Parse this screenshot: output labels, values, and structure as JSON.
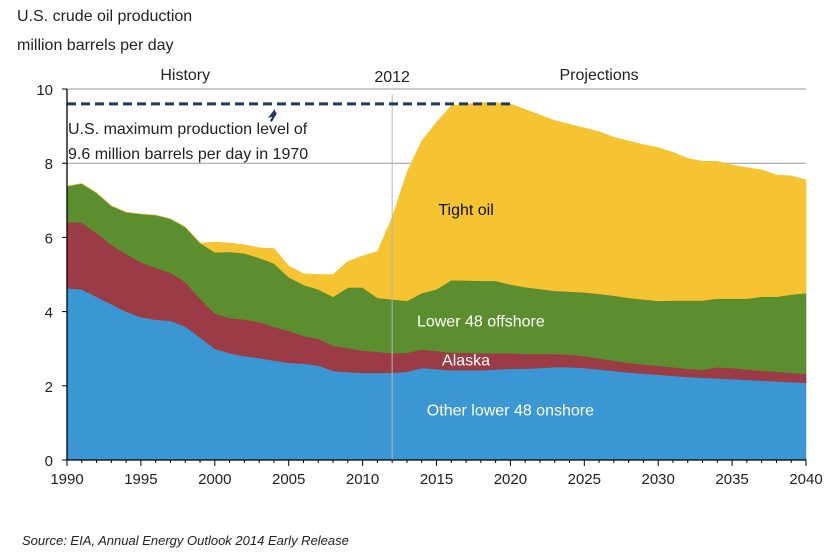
{
  "chart_data": {
    "type": "area",
    "stacked": true,
    "title_lines": [
      "U.S. crude oil production",
      "million barrels per day"
    ],
    "xlim": [
      1990,
      2040
    ],
    "ylim": [
      0,
      10
    ],
    "x_ticks": [
      1990,
      1995,
      2000,
      2005,
      2010,
      2015,
      2020,
      2025,
      2030,
      2035,
      2040
    ],
    "y_ticks": [
      0,
      2,
      4,
      6,
      8,
      10
    ],
    "grid": "horizontal lines at 8 and 10",
    "section_labels": {
      "history": "History",
      "divider": "2012",
      "projections": "Projections"
    },
    "divider_year": 2012,
    "annotation": {
      "line1": "U.S. maximum production level of",
      "line2": "9.6 million barrels per day in 1970",
      "level": 9.6,
      "x_range": [
        1990,
        2020
      ],
      "arrow_x": 2004
    },
    "source": "Source:  EIA, Annual Energy Outlook 2014 Early Release",
    "x": [
      1990,
      1991,
      1992,
      1993,
      1994,
      1995,
      1996,
      1997,
      1998,
      1999,
      2000,
      2001,
      2002,
      2003,
      2004,
      2005,
      2006,
      2007,
      2008,
      2009,
      2010,
      2011,
      2012,
      2013,
      2014,
      2015,
      2016,
      2017,
      2018,
      2019,
      2020,
      2021,
      2022,
      2023,
      2024,
      2025,
      2026,
      2027,
      2028,
      2029,
      2030,
      2031,
      2032,
      2033,
      2034,
      2035,
      2036,
      2037,
      2038,
      2039,
      2040
    ],
    "series": [
      {
        "name": "Other lower 48 onshore",
        "color": "#3b97d3",
        "label_color": "#ffffff",
        "label_pos": [
          2020,
          1.2
        ],
        "values": [
          4.63,
          4.6,
          4.4,
          4.2,
          4.0,
          3.85,
          3.78,
          3.75,
          3.6,
          3.3,
          3.0,
          2.88,
          2.8,
          2.75,
          2.68,
          2.62,
          2.6,
          2.55,
          2.4,
          2.37,
          2.35,
          2.35,
          2.35,
          2.38,
          2.48,
          2.45,
          2.42,
          2.42,
          2.42,
          2.44,
          2.46,
          2.46,
          2.48,
          2.5,
          2.5,
          2.48,
          2.44,
          2.4,
          2.36,
          2.33,
          2.3,
          2.27,
          2.24,
          2.22,
          2.2,
          2.18,
          2.16,
          2.14,
          2.12,
          2.1,
          2.08
        ]
      },
      {
        "name": "Alaska",
        "color": "#9b3b45",
        "label_color": "#ffffff",
        "label_pos": [
          2017,
          2.55
        ],
        "values": [
          1.78,
          1.8,
          1.72,
          1.6,
          1.56,
          1.48,
          1.4,
          1.3,
          1.2,
          1.05,
          0.95,
          0.95,
          0.99,
          0.97,
          0.91,
          0.86,
          0.74,
          0.72,
          0.68,
          0.65,
          0.6,
          0.57,
          0.53,
          0.51,
          0.5,
          0.49,
          0.48,
          0.47,
          0.46,
          0.44,
          0.42,
          0.4,
          0.38,
          0.36,
          0.34,
          0.32,
          0.3,
          0.28,
          0.26,
          0.25,
          0.24,
          0.23,
          0.22,
          0.21,
          0.3,
          0.3,
          0.28,
          0.27,
          0.26,
          0.25,
          0.24
        ]
      },
      {
        "name": "Lower 48 offshore",
        "color": "#5c8e2f",
        "label_color": "#ffffff",
        "label_pos": [
          2018,
          3.6
        ],
        "values": [
          0.97,
          1.05,
          1.08,
          1.05,
          1.12,
          1.3,
          1.42,
          1.45,
          1.48,
          1.5,
          1.65,
          1.78,
          1.78,
          1.73,
          1.71,
          1.45,
          1.38,
          1.33,
          1.32,
          1.63,
          1.7,
          1.45,
          1.45,
          1.4,
          1.52,
          1.66,
          1.95,
          1.95,
          1.95,
          1.95,
          1.85,
          1.8,
          1.75,
          1.7,
          1.7,
          1.72,
          1.74,
          1.75,
          1.75,
          1.75,
          1.75,
          1.8,
          1.84,
          1.87,
          1.85,
          1.87,
          1.91,
          1.99,
          2.02,
          2.11,
          2.18
        ]
      },
      {
        "name": "Tight oil",
        "color": "#f6c332",
        "label_color": "#111111",
        "label_pos": [
          2017,
          6.6
        ],
        "values": [
          0,
          0,
          0,
          0,
          0,
          0,
          0,
          0,
          0,
          0,
          0.27,
          0.24,
          0.23,
          0.27,
          0.4,
          0.3,
          0.3,
          0.4,
          0.6,
          0.7,
          0.85,
          1.25,
          2.2,
          3.46,
          4.1,
          4.5,
          4.7,
          4.75,
          4.8,
          4.8,
          4.87,
          4.79,
          4.69,
          4.59,
          4.51,
          4.43,
          4.37,
          4.27,
          4.23,
          4.17,
          4.13,
          3.99,
          3.83,
          3.75,
          3.7,
          3.6,
          3.53,
          3.42,
          3.28,
          3.2,
          3.05
        ]
      }
    ]
  }
}
